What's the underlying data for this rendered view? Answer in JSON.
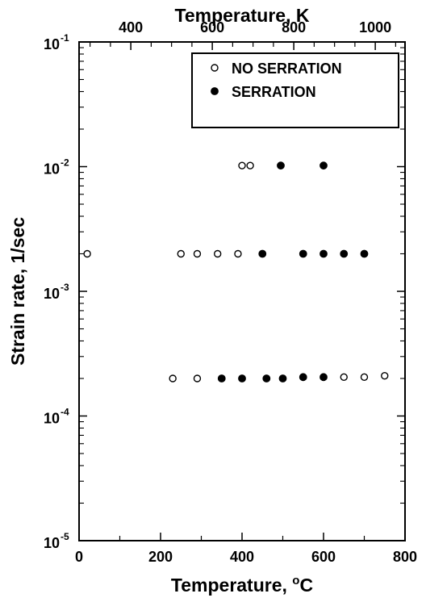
{
  "chart_data": {
    "type": "scatter",
    "xlabel": "Temperature, °C",
    "ylabel": "Strain rate, 1/sec",
    "top_xlabel": "Temperature, K",
    "xlim": [
      0,
      800
    ],
    "top_xlim_K": [
      273,
      1073
    ],
    "ylim": [
      1e-05,
      0.1
    ],
    "y_scale": "log",
    "grid": false,
    "legend_position": "top-right",
    "x_ticks": [
      {
        "value": 0,
        "label": "0"
      },
      {
        "value": 200,
        "label": "200"
      },
      {
        "value": 400,
        "label": "400"
      },
      {
        "value": 600,
        "label": "600"
      },
      {
        "value": 800,
        "label": "800"
      }
    ],
    "top_ticks": [
      {
        "value": 400,
        "label": "400"
      },
      {
        "value": 600,
        "label": "600"
      },
      {
        "value": 800,
        "label": "800"
      },
      {
        "value": 1000,
        "label": "1000"
      }
    ],
    "y_ticks": [
      {
        "value": 1e-05,
        "base": "10",
        "exp": "-5"
      },
      {
        "value": 0.0001,
        "base": "10",
        "exp": "-4"
      },
      {
        "value": 0.001,
        "base": "10",
        "exp": "-3"
      },
      {
        "value": 0.01,
        "base": "10",
        "exp": "-2"
      },
      {
        "value": 0.1,
        "base": "10",
        "exp": "-1"
      }
    ],
    "series": [
      {
        "name": "NO SERRATION",
        "marker": "open-circle",
        "points": [
          {
            "x": 20,
            "y": 0.002
          },
          {
            "x": 250,
            "y": 0.002
          },
          {
            "x": 290,
            "y": 0.002
          },
          {
            "x": 340,
            "y": 0.002
          },
          {
            "x": 390,
            "y": 0.002
          },
          {
            "x": 400,
            "y": 0.0102
          },
          {
            "x": 420,
            "y": 0.0102
          },
          {
            "x": 230,
            "y": 0.0002
          },
          {
            "x": 290,
            "y": 0.0002
          },
          {
            "x": 650,
            "y": 0.000205
          },
          {
            "x": 700,
            "y": 0.000205
          },
          {
            "x": 750,
            "y": 0.00021
          }
        ]
      },
      {
        "name": "SERRATION",
        "marker": "filled-circle",
        "points": [
          {
            "x": 495,
            "y": 0.0102
          },
          {
            "x": 600,
            "y": 0.0102
          },
          {
            "x": 450,
            "y": 0.002
          },
          {
            "x": 550,
            "y": 0.002
          },
          {
            "x": 600,
            "y": 0.002
          },
          {
            "x": 650,
            "y": 0.002
          },
          {
            "x": 700,
            "y": 0.002
          },
          {
            "x": 350,
            "y": 0.0002
          },
          {
            "x": 400,
            "y": 0.0002
          },
          {
            "x": 460,
            "y": 0.0002
          },
          {
            "x": 500,
            "y": 0.0002
          },
          {
            "x": 550,
            "y": 0.000205
          },
          {
            "x": 600,
            "y": 0.000205
          }
        ]
      }
    ]
  }
}
